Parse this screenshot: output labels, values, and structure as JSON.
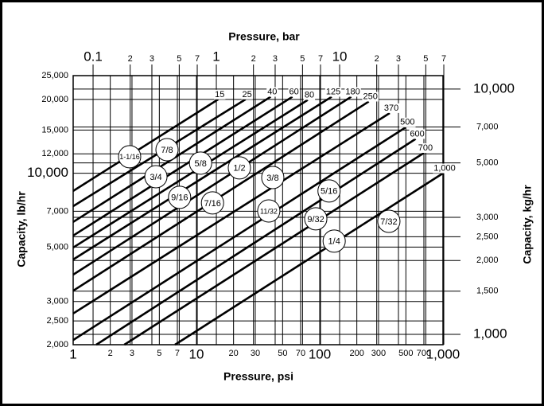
{
  "chart_data": {
    "type": "line",
    "x_label": "Pressure, psi",
    "x2_label": "Pressure, bar",
    "y_label": "Capacity, lb/hr",
    "y2_label": "Capacity, kg/hr",
    "log_x": true,
    "log_y": true,
    "grid": true,
    "color": "#000000",
    "xlim": [
      1,
      1000
    ],
    "xticks": [
      1,
      2,
      3,
      5,
      7,
      10,
      20,
      30,
      50,
      70,
      100,
      200,
      300,
      500,
      700,
      {
        "value": 1000,
        "label": "1,000"
      }
    ],
    "x2lim": [
      0.06895,
      68.95
    ],
    "x2ticks": [
      0.1,
      {
        "value": 0.2,
        "label": "2"
      },
      {
        "value": 0.3,
        "label": "3"
      },
      {
        "value": 0.5,
        "label": "5"
      },
      {
        "value": 0.7,
        "label": "7"
      },
      1,
      2,
      3,
      5,
      7,
      10,
      {
        "value": 20,
        "label": "2"
      },
      {
        "value": 30,
        "label": "3"
      },
      {
        "value": 50,
        "label": "5"
      },
      {
        "value": 70,
        "label": "7"
      }
    ],
    "ylim": [
      2000,
      25000
    ],
    "yticks": [
      {
        "value": 2000,
        "label": "2,000"
      },
      {
        "value": 2500,
        "label": "2,500"
      },
      {
        "value": 3000,
        "label": "3,000"
      },
      {
        "value": 5000,
        "label": "5,000"
      },
      {
        "value": 7000,
        "label": "7,000"
      },
      {
        "value": 10000,
        "label": "10,000"
      },
      {
        "value": 12000,
        "label": "12,000"
      },
      {
        "value": 15000,
        "label": "15,000"
      },
      {
        "value": 20000,
        "label": "20,000"
      },
      {
        "value": 25000,
        "label": "25,000"
      }
    ],
    "y2lim": [
      907.2,
      11340
    ],
    "y2ticks": [
      {
        "value": 1000,
        "label": "1,000"
      },
      {
        "value": 1500,
        "label": "1,500"
      },
      {
        "value": 2000,
        "label": "2,000"
      },
      {
        "value": 2500,
        "label": "2,500"
      },
      {
        "value": 3000,
        "label": "3,000"
      },
      {
        "value": 5000,
        "label": "5,000"
      },
      {
        "value": 7000,
        "label": "7,000"
      },
      {
        "value": 10000,
        "label": "10,000"
      }
    ],
    "series": [
      {
        "name": "15",
        "x": [
          1,
          15
        ],
        "values": [
          8470,
          20000
        ]
      },
      {
        "name": "25",
        "x": [
          1,
          25
        ],
        "values": [
          7340,
          20000
        ]
      },
      {
        "name": "40",
        "x": [
          1,
          40
        ],
        "values": [
          6330,
          20500
        ]
      },
      {
        "name": "60",
        "x": [
          1,
          60
        ],
        "values": [
          5570,
          20500
        ]
      },
      {
        "name": "80",
        "x": [
          1,
          80
        ],
        "values": [
          4980,
          19900
        ]
      },
      {
        "name": "125",
        "x": [
          1,
          125
        ],
        "values": [
          4450,
          20500
        ]
      },
      {
        "name": "180",
        "x": [
          1,
          180
        ],
        "values": [
          3860,
          20500
        ]
      },
      {
        "name": "250",
        "x": [
          1,
          250
        ],
        "values": [
          3320,
          19600
        ]
      },
      {
        "name": "370",
        "x": [
          1,
          370
        ],
        "values": [
          2680,
          17600
        ]
      },
      {
        "name": "500",
        "x": [
          1,
          500
        ],
        "values": [
          2090,
          15400
        ]
      },
      {
        "name": "600",
        "x": [
          1.54,
          600
        ],
        "values": [
          2000,
          13800
        ]
      },
      {
        "name": "700",
        "x": [
          2.6,
          700
        ],
        "values": [
          2000,
          12100
        ]
      },
      {
        "name": "1,000",
        "x": [
          6.7,
          1000
        ],
        "values": [
          2000,
          10000
        ]
      }
    ],
    "annotations": [
      {
        "label": "1-1/16",
        "x": 2.87,
        "y": 11680
      },
      {
        "label": "7/8",
        "x": 5.77,
        "y": 12480
      },
      {
        "label": "3/4",
        "x": 4.69,
        "y": 9680
      },
      {
        "label": "5/8",
        "x": 10.8,
        "y": 11000
      },
      {
        "label": "9/16",
        "x": 7.3,
        "y": 7980
      },
      {
        "label": "7/16",
        "x": 13.5,
        "y": 7570
      },
      {
        "label": "1/2",
        "x": 22.3,
        "y": 10520
      },
      {
        "label": "3/8",
        "x": 41.6,
        "y": 9610
      },
      {
        "label": "11/32",
        "x": 38.6,
        "y": 7020
      },
      {
        "label": "5/16",
        "x": 119,
        "y": 8470
      },
      {
        "label": "9/32",
        "x": 92.9,
        "y": 6520
      },
      {
        "label": "1/4",
        "x": 131,
        "y": 5290
      },
      {
        "label": "7/32",
        "x": 364,
        "y": 6370
      }
    ]
  }
}
